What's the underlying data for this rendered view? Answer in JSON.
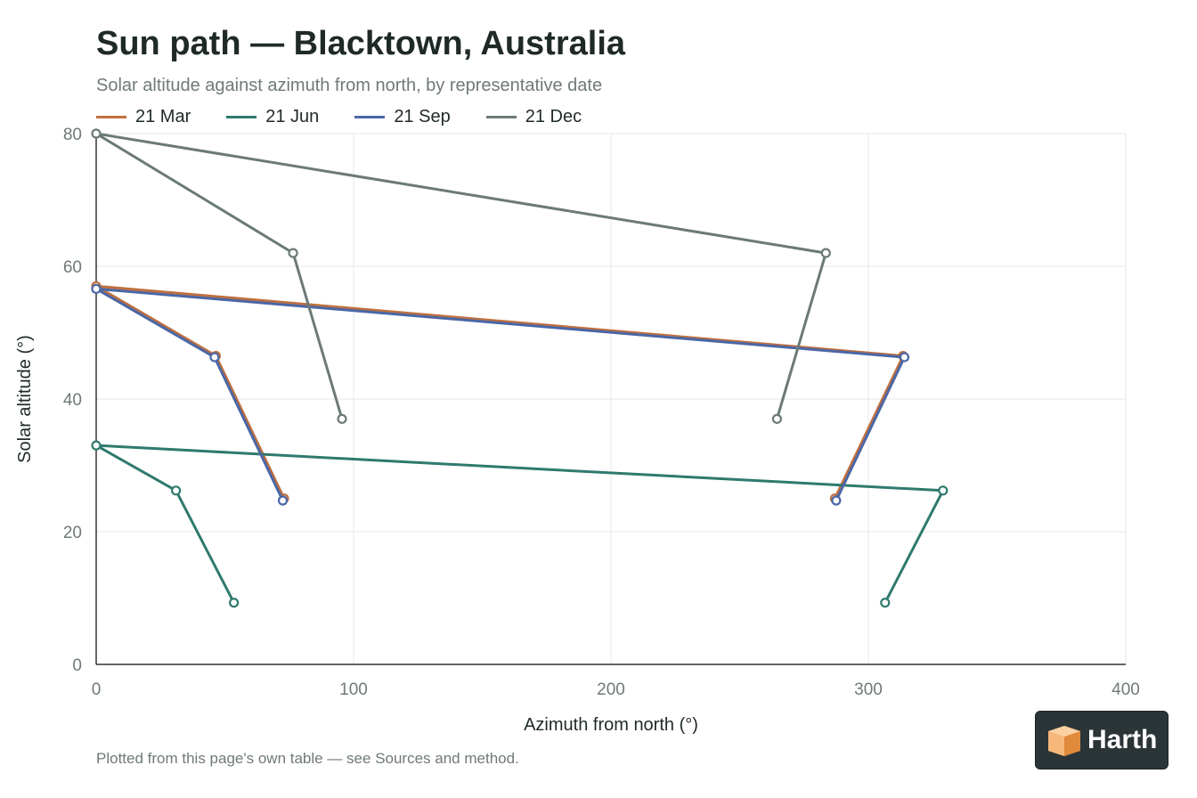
{
  "header": {
    "title": "Sun path — Blacktown, Australia",
    "subtitle": "Solar altitude against azimuth from north, by representative date"
  },
  "footnote": "Plotted from this page's own table — see Sources and method.",
  "brand": {
    "name": "Harth",
    "colors": {
      "logo_bg": "#2b3437",
      "logo_orange": "#f0a05a"
    }
  },
  "colors": {
    "grid": "#e6e9e8",
    "axis": "#333333",
    "tick_text": "#6f7a78",
    "point_fill": "#ffffff"
  },
  "chart_data": {
    "type": "line",
    "xlabel": "Azimuth from north (°)",
    "ylabel": "Solar altitude (°)",
    "xlim": [
      0,
      400
    ],
    "ylim": [
      0,
      80
    ],
    "xticks": [
      0,
      100,
      200,
      300,
      400
    ],
    "yticks": [
      0,
      20,
      40,
      60,
      80
    ],
    "grid": true,
    "legend_position": "top-left",
    "series": [
      {
        "name": "21 Mar",
        "color": "#c0703f",
        "points": [
          [
            73,
            25
          ],
          [
            46.5,
            46.5
          ],
          [
            0,
            57
          ],
          [
            313.5,
            46.5
          ],
          [
            287,
            25
          ]
        ]
      },
      {
        "name": "21 Jun",
        "color": "#2f7a6e",
        "points": [
          [
            53.5,
            9.3
          ],
          [
            31,
            26.2
          ],
          [
            0,
            33
          ],
          [
            329,
            26.2
          ],
          [
            306.5,
            9.3
          ]
        ]
      },
      {
        "name": "21 Sep",
        "color": "#4a67a6",
        "points": [
          [
            72.5,
            24.7
          ],
          [
            46,
            46.3
          ],
          [
            0,
            56.6
          ],
          [
            314,
            46.3
          ],
          [
            287.5,
            24.7
          ]
        ]
      },
      {
        "name": "21 Dec",
        "color": "#6b7a76",
        "points": [
          [
            95.5,
            37
          ],
          [
            76.5,
            62
          ],
          [
            0,
            80
          ],
          [
            283.5,
            62
          ],
          [
            264.5,
            37
          ]
        ]
      }
    ]
  }
}
